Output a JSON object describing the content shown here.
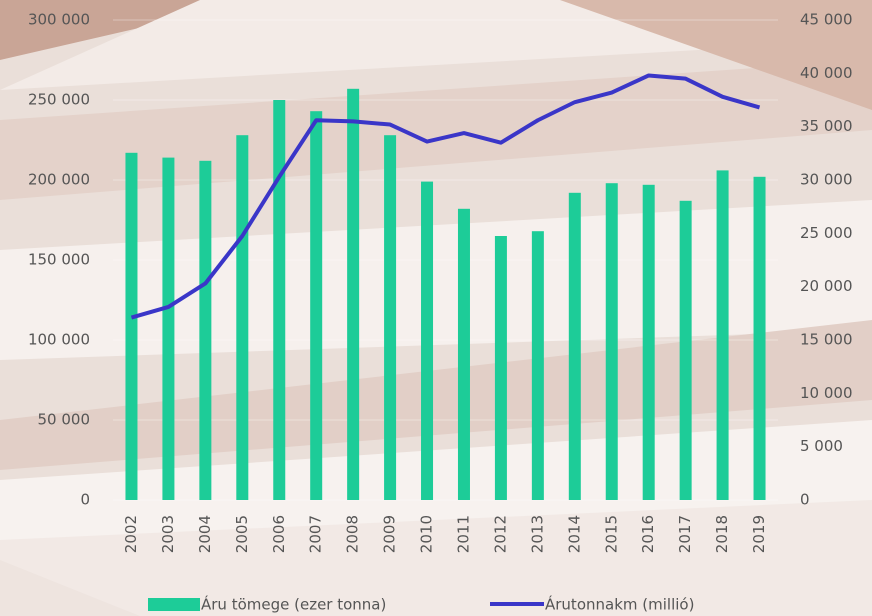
{
  "chart_data": {
    "type": "bar-line",
    "categories": [
      "2002",
      "2003",
      "2004",
      "2005",
      "2006",
      "2007",
      "2008",
      "2009",
      "2010",
      "2011",
      "2012",
      "2013",
      "2014",
      "2015",
      "2016",
      "2017",
      "2018",
      "2019"
    ],
    "series": [
      {
        "name": "Áru tömege (ezer tonna)",
        "type": "bar",
        "color": "#1dcc98",
        "axis": "y",
        "values": [
          217000,
          214000,
          212000,
          228000,
          250000,
          243000,
          257000,
          228000,
          199000,
          182000,
          165000,
          168000,
          192000,
          198000,
          197000,
          187000,
          206000,
          202000
        ]
      },
      {
        "name": "Árutonnakm (millió)",
        "type": "line",
        "color": "#3a36c8",
        "axis": "y2",
        "values": [
          17100,
          18100,
          20300,
          24750,
          30300,
          35600,
          35500,
          35200,
          33600,
          34400,
          33500,
          35600,
          37300,
          38200,
          39800,
          39500,
          37800,
          36800
        ]
      }
    ],
    "ylim": [
      0,
      300000
    ],
    "yticks": [
      0,
      {
        "value": 50000,
        "label": "50 000"
      },
      {
        "value": 100000,
        "label": "100 000"
      },
      {
        "value": 150000,
        "label": "150 000"
      },
      {
        "value": 200000,
        "label": "200 000"
      },
      {
        "value": 250000,
        "label": "250 000"
      },
      {
        "value": 300000,
        "label": "300 000"
      }
    ],
    "y2lim": [
      0,
      45000
    ],
    "y2ticks": [
      0,
      {
        "value": 5000,
        "label": "5 000"
      },
      {
        "value": 10000,
        "label": "10 000"
      },
      {
        "value": 15000,
        "label": "15 000"
      },
      {
        "value": 20000,
        "label": "20 000"
      },
      {
        "value": 25000,
        "label": "25 000"
      },
      {
        "value": 30000,
        "label": "30 000"
      },
      {
        "value": 35000,
        "label": "35 000"
      },
      {
        "value": 40000,
        "label": "40 000"
      },
      {
        "value": 45000,
        "label": "45 000"
      }
    ],
    "grid": true,
    "legend": "bottom"
  }
}
